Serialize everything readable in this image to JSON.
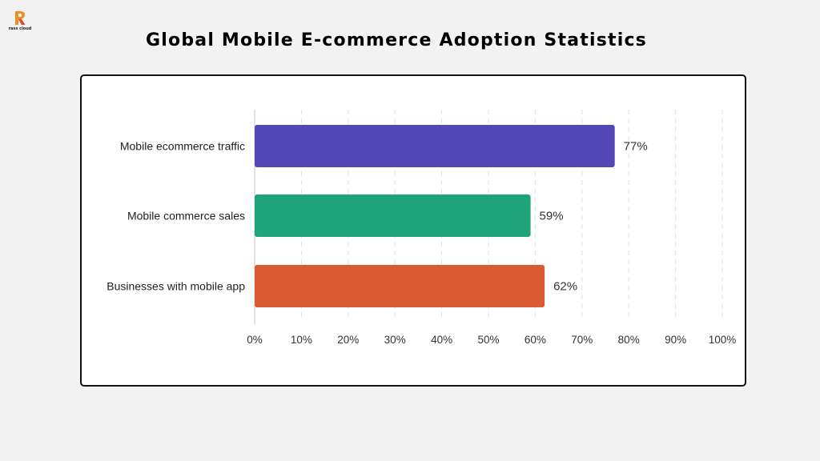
{
  "logo": {
    "text": "rass cloud",
    "icon": "brand-r-logo-icon",
    "colors": [
      "#f28c1b",
      "#e8452c"
    ]
  },
  "title": "Global Mobile E-commerce Adoption Statistics",
  "chart_data": {
    "type": "bar",
    "orientation": "horizontal",
    "title": "",
    "xlabel": "",
    "ylabel": "",
    "categories": [
      "Mobile ecommerce traffic",
      "Mobile commerce sales",
      "Businesses with mobile app"
    ],
    "values": [
      77,
      59,
      62
    ],
    "value_labels": [
      "77%",
      "59%",
      "62%"
    ],
    "colors": [
      "#5249b6",
      "#1fa37a",
      "#d95b31"
    ],
    "xlim": [
      0,
      100
    ],
    "x_ticks": [
      0,
      10,
      20,
      30,
      40,
      50,
      60,
      70,
      80,
      90,
      100
    ],
    "x_tick_labels": [
      "0%",
      "10%",
      "20%",
      "30%",
      "40%",
      "50%",
      "60%",
      "70%",
      "80%",
      "90%",
      "100%"
    ],
    "grid": "vertical-dashed",
    "legend": "none"
  }
}
